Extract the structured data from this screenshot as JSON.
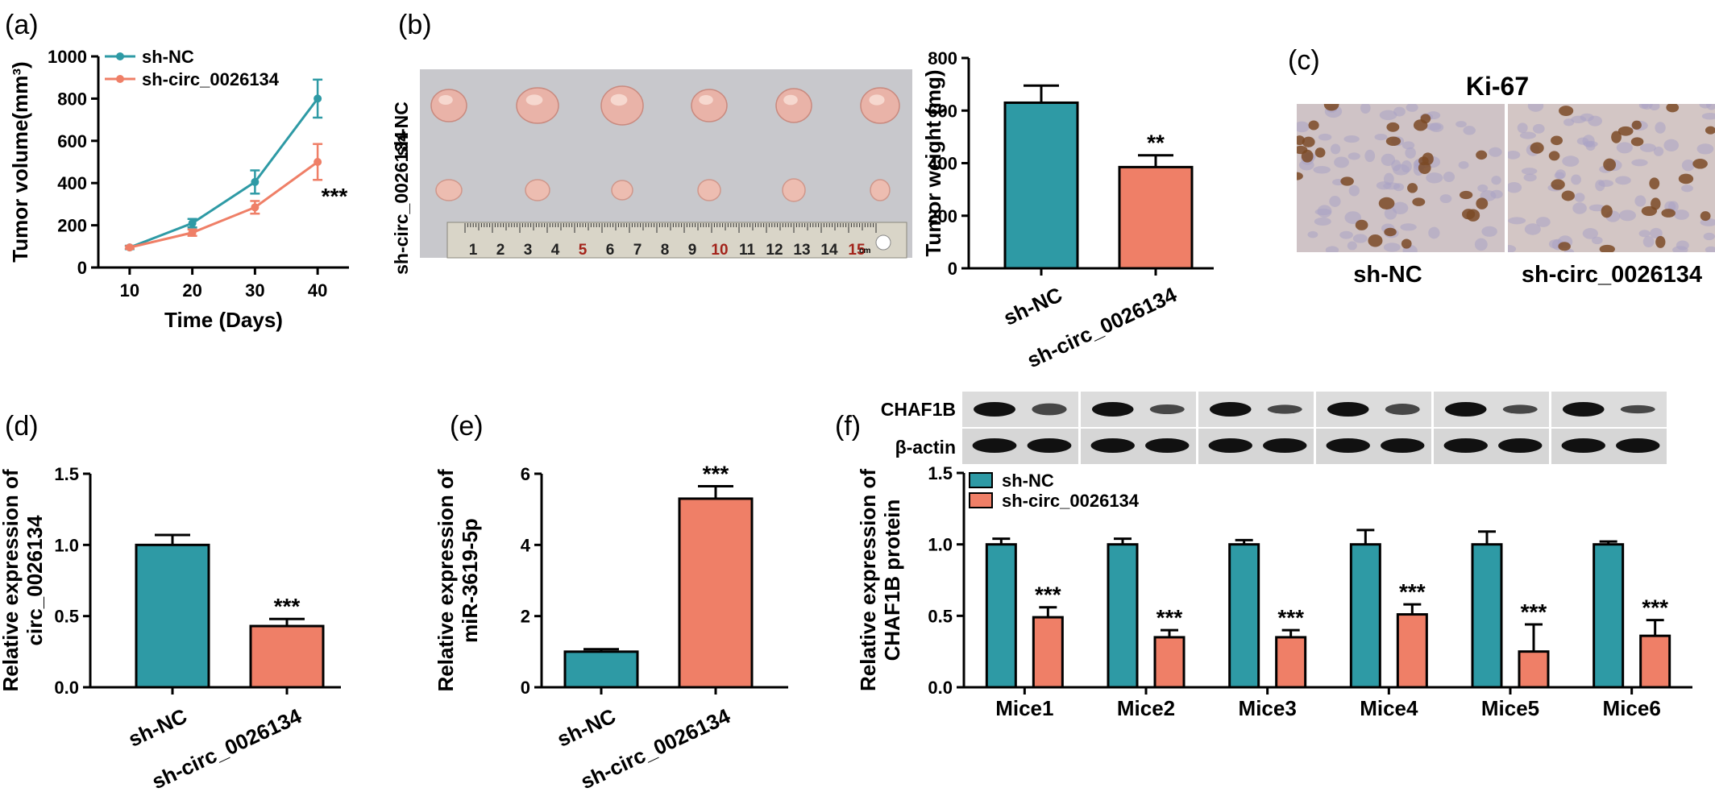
{
  "colors": {
    "nc": "#2E9AA5",
    "circ": "#EF7F67",
    "axis": "#000000"
  },
  "panels": {
    "a": "(a)",
    "b": "(b)",
    "c": "(c)",
    "d": "(d)",
    "e": "(e)",
    "f": "(f)"
  },
  "photo_b": {
    "row_labels": [
      "sh-NC",
      "sh-circ_0026134"
    ],
    "ruler_numbers": [
      "1",
      "2",
      "3",
      "4",
      "5",
      "6",
      "7",
      "8",
      "9",
      "10",
      "11",
      "12",
      "13",
      "14",
      "15"
    ],
    "ruler_unit": "cm"
  },
  "photo_c": {
    "title": "Ki-67",
    "labels": [
      "sh-NC",
      "sh-circ_0026134"
    ]
  },
  "blot_f": {
    "rows": [
      "CHAF1B",
      "β-actin"
    ]
  },
  "chart_data": [
    {
      "id": "a",
      "type": "line",
      "x": [
        10,
        20,
        30,
        40
      ],
      "series": [
        {
          "name": "sh-NC",
          "values": [
            95,
            210,
            405,
            800
          ],
          "errors": [
            8,
            20,
            55,
            90
          ]
        },
        {
          "name": "sh-circ_0026134",
          "values": [
            95,
            165,
            285,
            500
          ],
          "errors": [
            6,
            15,
            30,
            85
          ]
        }
      ],
      "xlabel": "Time (Days)",
      "ylabel": "Tumor volume(mm³)",
      "xticks": [
        "10",
        "20",
        "30",
        "40"
      ],
      "yticks": [
        "0",
        "200",
        "400",
        "600",
        "800",
        "1000"
      ],
      "xlim": [
        5,
        45
      ],
      "ylim": [
        0,
        1000
      ],
      "annotation": "***",
      "legend": "top-left"
    },
    {
      "id": "b",
      "type": "bar",
      "categories": [
        "sh-NC",
        "sh-circ_0026134"
      ],
      "values": [
        630,
        385
      ],
      "errors": [
        65,
        45
      ],
      "ylabel": "Tumor weight (mg)",
      "yticks": [
        "0",
        "200",
        "400",
        "600",
        "800"
      ],
      "ylim": [
        0,
        800
      ],
      "significance": [
        "",
        "**"
      ]
    },
    {
      "id": "d",
      "type": "bar",
      "categories": [
        "sh-NC",
        "sh-circ_0026134"
      ],
      "values": [
        1.0,
        0.43
      ],
      "errors": [
        0.07,
        0.05
      ],
      "ylabel": "Relative expression of circ_0026134",
      "ylabel_lines": [
        "Relative expression of",
        "circ_0026134"
      ],
      "yticks": [
        "0.0",
        "0.5",
        "1.0",
        "1.5"
      ],
      "ylim": [
        0,
        1.5
      ],
      "significance": [
        "",
        "***"
      ]
    },
    {
      "id": "e",
      "type": "bar",
      "categories": [
        "sh-NC",
        "sh-circ_0026134"
      ],
      "values": [
        1.0,
        5.3
      ],
      "errors": [
        0.07,
        0.35
      ],
      "ylabel": "Relative expression of miR-3619-5p",
      "ylabel_lines": [
        "Relative expression of",
        "miR-3619-5p"
      ],
      "yticks": [
        "0",
        "2",
        "4",
        "6"
      ],
      "ylim": [
        0,
        6
      ],
      "significance": [
        "",
        "***"
      ]
    },
    {
      "id": "f",
      "type": "bar",
      "categories": [
        "Mice1",
        "Mice2",
        "Mice3",
        "Mice4",
        "Mice5",
        "Mice6"
      ],
      "series": [
        {
          "name": "sh-NC",
          "values": [
            1.0,
            1.0,
            1.0,
            1.0,
            1.0,
            1.0
          ],
          "errors": [
            0.04,
            0.04,
            0.03,
            0.1,
            0.09,
            0.02
          ]
        },
        {
          "name": "sh-circ_0026134",
          "values": [
            0.49,
            0.35,
            0.35,
            0.51,
            0.25,
            0.36
          ],
          "errors": [
            0.07,
            0.05,
            0.05,
            0.07,
            0.19,
            0.11
          ]
        }
      ],
      "ylabel": "Relative expression of CHAF1B protein",
      "ylabel_lines": [
        "Relative expression of",
        "CHAF1B protein"
      ],
      "yticks": [
        "0.0",
        "0.5",
        "1.0",
        "1.5"
      ],
      "ylim": [
        0,
        1.5
      ],
      "significance": [
        "***",
        "***",
        "***",
        "***",
        "***",
        "***"
      ],
      "legend": "top-left"
    }
  ]
}
